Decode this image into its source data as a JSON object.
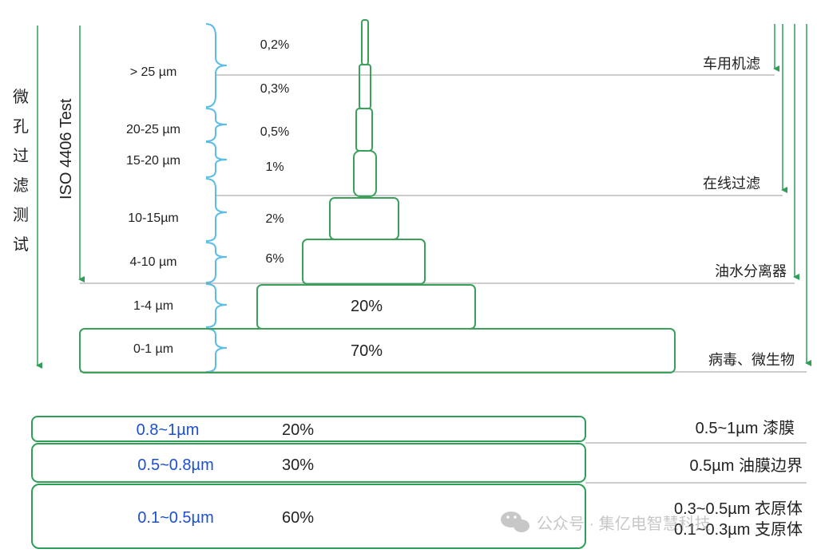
{
  "diagram": {
    "left_label_vertical": [
      "微",
      "孔",
      "过",
      "滤",
      "测",
      "试"
    ],
    "iso_label": "ISO 4406 Test",
    "size_ranges": [
      {
        "label": "> 25 µm",
        "percents": [
          "0,2%",
          "0,3%"
        ]
      },
      {
        "label": "20-25 µm",
        "percents": [
          "0,5%"
        ]
      },
      {
        "label": "15-20 µm",
        "percents": [
          "1%"
        ]
      },
      {
        "label": "10-15µm",
        "percents": [
          "2%"
        ]
      },
      {
        "label": "4-10 µm",
        "percents": [
          "6%"
        ]
      },
      {
        "label": "1-4 µm",
        "percents": [
          "20%"
        ]
      },
      {
        "label": "0-1 µm",
        "percents": [
          "70%"
        ]
      }
    ],
    "filter_labels": [
      "车用机滤",
      "在线过滤",
      "油水分离器",
      "病毒、微生物"
    ],
    "colors": {
      "green": "#2f9e57",
      "pyramid_green": "#3aa05a",
      "brace_blue": "#5bbde6",
      "blue_text": "#1a4fd6",
      "gray_line": "#9a9a9a",
      "text": "#222222"
    }
  },
  "table": {
    "rows": [
      {
        "range": "0.8~1µm",
        "percent": "20%",
        "desc": [
          "0.5~1µm 漆膜"
        ]
      },
      {
        "range": "0.5~0.8µm",
        "percent": "30%",
        "desc": [
          "0.5µm 油膜边界"
        ]
      },
      {
        "range": "0.1~0.5µm",
        "percent": "60%",
        "desc": [
          "0.3~0.5µm 衣原体",
          "0.1~0.3µm 支原体"
        ]
      }
    ]
  },
  "watermark": {
    "text": "公众号 · 集亿电智慧科技",
    "icon": "wechat-icon"
  }
}
